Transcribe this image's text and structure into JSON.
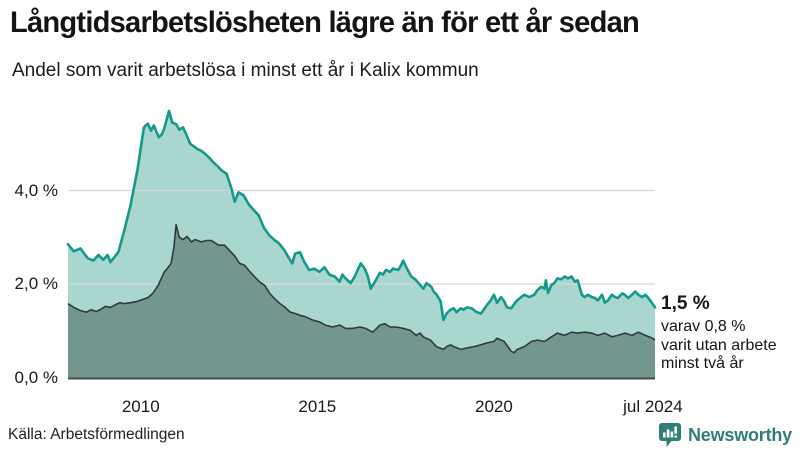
{
  "header": {
    "title": "Långtidsarbetslösheten lägre än för ett år sedan",
    "subtitle": "Andel som varit arbetslösa i minst ett år i Kalix kommun"
  },
  "annotation": {
    "headline": "1,5 %",
    "lines": [
      "varav 0,8 %",
      "varit utan arbete",
      "minst två år"
    ]
  },
  "footer": {
    "source": "Källa: Arbetsförmedlingen",
    "brand": "Newsworthy"
  },
  "colors": {
    "title_text": "#141414",
    "body_text": "#1b1b1b",
    "area_one_year_fill": "#a9d6ce",
    "area_one_year_line": "#149a8b",
    "area_two_year_fill": "#73978e",
    "area_two_year_line": "#2e3b38",
    "gridline": "#d3d8da",
    "baseline": "#4b4b4b",
    "brand_teal": "#2f7f78"
  },
  "chart_data": {
    "type": "area",
    "title": "Långtidsarbetslösheten lägre än för ett år sedan",
    "subtitle": "Andel som varit arbetslösa i minst ett år i Kalix kommun",
    "unit": "%",
    "grid": "horizontal",
    "legend_position": "none",
    "x_axis": {
      "range": [
        2007.94,
        2024.56
      ],
      "ticks": [
        {
          "year": 2010,
          "label": "2010"
        },
        {
          "year": 2015,
          "label": "2015"
        },
        {
          "year": 2020,
          "label": "2020"
        },
        {
          "year": 2024.5,
          "label": "jul 2024"
        }
      ]
    },
    "y_axis": {
      "range": [
        0,
        6
      ],
      "ticks": [
        {
          "value": 0,
          "label": "0,0 %"
        },
        {
          "value": 2,
          "label": "2,0 %"
        },
        {
          "value": 4,
          "label": "4,0 %"
        }
      ]
    },
    "last_point": {
      "label": "jul 2024",
      "one_year_pct": "1,5 %",
      "two_year_pct": "0,8 %"
    },
    "series": [
      {
        "name": "Andel som varit arbetslösa i minst ett år",
        "fill": "#a9d6ce",
        "line": "#149a8b",
        "points": [
          [
            2007.94,
            2.85
          ],
          [
            2008.1,
            2.7
          ],
          [
            2008.29,
            2.76
          ],
          [
            2008.5,
            2.55
          ],
          [
            2008.66,
            2.5
          ],
          [
            2008.8,
            2.62
          ],
          [
            2008.94,
            2.52
          ],
          [
            2009.06,
            2.62
          ],
          [
            2009.14,
            2.47
          ],
          [
            2009.26,
            2.58
          ],
          [
            2009.37,
            2.69
          ],
          [
            2009.51,
            3.08
          ],
          [
            2009.71,
            3.68
          ],
          [
            2009.91,
            4.46
          ],
          [
            2010.09,
            5.35
          ],
          [
            2010.2,
            5.43
          ],
          [
            2010.29,
            5.28
          ],
          [
            2010.37,
            5.39
          ],
          [
            2010.51,
            5.14
          ],
          [
            2010.6,
            5.2
          ],
          [
            2010.66,
            5.32
          ],
          [
            2010.71,
            5.45
          ],
          [
            2010.8,
            5.7
          ],
          [
            2010.89,
            5.45
          ],
          [
            2011.0,
            5.42
          ],
          [
            2011.09,
            5.3
          ],
          [
            2011.2,
            5.35
          ],
          [
            2011.29,
            5.2
          ],
          [
            2011.4,
            5.0
          ],
          [
            2011.49,
            4.95
          ],
          [
            2011.6,
            4.89
          ],
          [
            2011.71,
            4.85
          ],
          [
            2011.83,
            4.78
          ],
          [
            2011.94,
            4.7
          ],
          [
            2012.06,
            4.6
          ],
          [
            2012.2,
            4.5
          ],
          [
            2012.29,
            4.43
          ],
          [
            2012.43,
            4.36
          ],
          [
            2012.57,
            4.04
          ],
          [
            2012.66,
            3.76
          ],
          [
            2012.77,
            3.96
          ],
          [
            2012.91,
            3.9
          ],
          [
            2013.06,
            3.7
          ],
          [
            2013.2,
            3.58
          ],
          [
            2013.34,
            3.47
          ],
          [
            2013.49,
            3.2
          ],
          [
            2013.63,
            3.05
          ],
          [
            2013.77,
            2.95
          ],
          [
            2013.91,
            2.87
          ],
          [
            2014.06,
            2.73
          ],
          [
            2014.2,
            2.55
          ],
          [
            2014.29,
            2.44
          ],
          [
            2014.37,
            2.65
          ],
          [
            2014.51,
            2.68
          ],
          [
            2014.63,
            2.47
          ],
          [
            2014.77,
            2.3
          ],
          [
            2014.91,
            2.33
          ],
          [
            2015.06,
            2.26
          ],
          [
            2015.2,
            2.36
          ],
          [
            2015.34,
            2.2
          ],
          [
            2015.49,
            2.16
          ],
          [
            2015.63,
            2.05
          ],
          [
            2015.71,
            2.2
          ],
          [
            2015.8,
            2.12
          ],
          [
            2015.94,
            2.02
          ],
          [
            2016.06,
            2.16
          ],
          [
            2016.14,
            2.3
          ],
          [
            2016.23,
            2.44
          ],
          [
            2016.34,
            2.33
          ],
          [
            2016.43,
            2.16
          ],
          [
            2016.51,
            1.9
          ],
          [
            2016.63,
            2.05
          ],
          [
            2016.77,
            2.24
          ],
          [
            2016.86,
            2.2
          ],
          [
            2016.94,
            2.3
          ],
          [
            2017.06,
            2.26
          ],
          [
            2017.14,
            2.33
          ],
          [
            2017.29,
            2.3
          ],
          [
            2017.37,
            2.4
          ],
          [
            2017.43,
            2.5
          ],
          [
            2017.51,
            2.37
          ],
          [
            2017.66,
            2.16
          ],
          [
            2017.77,
            2.1
          ],
          [
            2017.91,
            1.98
          ],
          [
            2018.0,
            1.9
          ],
          [
            2018.09,
            2.02
          ],
          [
            2018.23,
            1.94
          ],
          [
            2018.29,
            1.84
          ],
          [
            2018.37,
            1.78
          ],
          [
            2018.49,
            1.63
          ],
          [
            2018.57,
            1.23
          ],
          [
            2018.66,
            1.37
          ],
          [
            2018.77,
            1.45
          ],
          [
            2018.86,
            1.48
          ],
          [
            2018.94,
            1.4
          ],
          [
            2019.06,
            1.48
          ],
          [
            2019.14,
            1.45
          ],
          [
            2019.23,
            1.5
          ],
          [
            2019.37,
            1.48
          ],
          [
            2019.51,
            1.4
          ],
          [
            2019.63,
            1.37
          ],
          [
            2019.71,
            1.45
          ],
          [
            2019.8,
            1.55
          ],
          [
            2019.91,
            1.65
          ],
          [
            2020.0,
            1.77
          ],
          [
            2020.09,
            1.6
          ],
          [
            2020.2,
            1.72
          ],
          [
            2020.29,
            1.63
          ],
          [
            2020.37,
            1.5
          ],
          [
            2020.49,
            1.48
          ],
          [
            2020.63,
            1.63
          ],
          [
            2020.77,
            1.72
          ],
          [
            2020.86,
            1.77
          ],
          [
            2021.0,
            1.72
          ],
          [
            2021.14,
            1.77
          ],
          [
            2021.23,
            1.87
          ],
          [
            2021.34,
            1.94
          ],
          [
            2021.43,
            1.9
          ],
          [
            2021.47,
            2.08
          ],
          [
            2021.53,
            1.81
          ],
          [
            2021.63,
            1.98
          ],
          [
            2021.71,
            2.02
          ],
          [
            2021.8,
            2.12
          ],
          [
            2021.91,
            2.1
          ],
          [
            2022.0,
            2.16
          ],
          [
            2022.09,
            2.12
          ],
          [
            2022.2,
            2.16
          ],
          [
            2022.29,
            2.05
          ],
          [
            2022.37,
            2.08
          ],
          [
            2022.49,
            1.77
          ],
          [
            2022.57,
            1.72
          ],
          [
            2022.66,
            1.77
          ],
          [
            2022.77,
            1.72
          ],
          [
            2022.86,
            1.7
          ],
          [
            2022.94,
            1.65
          ],
          [
            2023.06,
            1.77
          ],
          [
            2023.14,
            1.6
          ],
          [
            2023.23,
            1.65
          ],
          [
            2023.34,
            1.77
          ],
          [
            2023.43,
            1.72
          ],
          [
            2023.51,
            1.7
          ],
          [
            2023.63,
            1.8
          ],
          [
            2023.71,
            1.77
          ],
          [
            2023.8,
            1.7
          ],
          [
            2023.91,
            1.77
          ],
          [
            2024.0,
            1.84
          ],
          [
            2024.09,
            1.77
          ],
          [
            2024.2,
            1.72
          ],
          [
            2024.29,
            1.77
          ],
          [
            2024.37,
            1.7
          ],
          [
            2024.45,
            1.62
          ],
          [
            2024.56,
            1.5
          ]
        ]
      },
      {
        "name": "varav utan arbete minst två år",
        "fill": "#73978e",
        "line": "#2e3b38",
        "points": [
          [
            2007.94,
            1.58
          ],
          [
            2008.1,
            1.5
          ],
          [
            2008.29,
            1.43
          ],
          [
            2008.46,
            1.4
          ],
          [
            2008.6,
            1.45
          ],
          [
            2008.74,
            1.41
          ],
          [
            2008.89,
            1.47
          ],
          [
            2009.0,
            1.52
          ],
          [
            2009.14,
            1.5
          ],
          [
            2009.29,
            1.56
          ],
          [
            2009.4,
            1.6
          ],
          [
            2009.54,
            1.58
          ],
          [
            2009.71,
            1.6
          ],
          [
            2009.91,
            1.63
          ],
          [
            2010.09,
            1.68
          ],
          [
            2010.2,
            1.71
          ],
          [
            2010.34,
            1.8
          ],
          [
            2010.49,
            1.97
          ],
          [
            2010.66,
            2.25
          ],
          [
            2010.77,
            2.35
          ],
          [
            2010.86,
            2.44
          ],
          [
            2010.94,
            2.8
          ],
          [
            2011.0,
            3.27
          ],
          [
            2011.09,
            3.0
          ],
          [
            2011.2,
            2.95
          ],
          [
            2011.31,
            3.02
          ],
          [
            2011.43,
            2.9
          ],
          [
            2011.54,
            2.95
          ],
          [
            2011.71,
            2.9
          ],
          [
            2011.86,
            2.93
          ],
          [
            2012.0,
            2.93
          ],
          [
            2012.2,
            2.83
          ],
          [
            2012.37,
            2.83
          ],
          [
            2012.51,
            2.72
          ],
          [
            2012.66,
            2.6
          ],
          [
            2012.8,
            2.44
          ],
          [
            2012.94,
            2.4
          ],
          [
            2013.09,
            2.26
          ],
          [
            2013.23,
            2.15
          ],
          [
            2013.37,
            2.04
          ],
          [
            2013.51,
            1.97
          ],
          [
            2013.66,
            1.79
          ],
          [
            2013.8,
            1.68
          ],
          [
            2013.94,
            1.58
          ],
          [
            2014.09,
            1.5
          ],
          [
            2014.23,
            1.4
          ],
          [
            2014.37,
            1.37
          ],
          [
            2014.51,
            1.33
          ],
          [
            2014.66,
            1.3
          ],
          [
            2014.86,
            1.23
          ],
          [
            2015.06,
            1.19
          ],
          [
            2015.23,
            1.12
          ],
          [
            2015.43,
            1.08
          ],
          [
            2015.63,
            1.12
          ],
          [
            2015.8,
            1.05
          ],
          [
            2016.0,
            1.05
          ],
          [
            2016.2,
            1.08
          ],
          [
            2016.37,
            1.05
          ],
          [
            2016.57,
            0.97
          ],
          [
            2016.77,
            1.12
          ],
          [
            2016.91,
            1.15
          ],
          [
            2017.06,
            1.08
          ],
          [
            2017.23,
            1.08
          ],
          [
            2017.43,
            1.05
          ],
          [
            2017.63,
            1.01
          ],
          [
            2017.8,
            0.9
          ],
          [
            2017.91,
            0.95
          ],
          [
            2018.0,
            0.87
          ],
          [
            2018.2,
            0.8
          ],
          [
            2018.37,
            0.66
          ],
          [
            2018.57,
            0.6
          ],
          [
            2018.66,
            0.66
          ],
          [
            2018.77,
            0.7
          ],
          [
            2018.86,
            0.66
          ],
          [
            2019.06,
            0.6
          ],
          [
            2019.23,
            0.63
          ],
          [
            2019.43,
            0.66
          ],
          [
            2019.63,
            0.7
          ],
          [
            2019.8,
            0.74
          ],
          [
            2020.0,
            0.77
          ],
          [
            2020.09,
            0.84
          ],
          [
            2020.29,
            0.77
          ],
          [
            2020.49,
            0.56
          ],
          [
            2020.57,
            0.53
          ],
          [
            2020.66,
            0.6
          ],
          [
            2020.86,
            0.66
          ],
          [
            2021.06,
            0.77
          ],
          [
            2021.23,
            0.8
          ],
          [
            2021.43,
            0.77
          ],
          [
            2021.63,
            0.87
          ],
          [
            2021.8,
            0.95
          ],
          [
            2022.0,
            0.9
          ],
          [
            2022.2,
            0.97
          ],
          [
            2022.37,
            0.95
          ],
          [
            2022.57,
            0.97
          ],
          [
            2022.77,
            0.95
          ],
          [
            2022.94,
            0.9
          ],
          [
            2023.14,
            0.95
          ],
          [
            2023.34,
            0.87
          ],
          [
            2023.51,
            0.9
          ],
          [
            2023.71,
            0.95
          ],
          [
            2023.91,
            0.9
          ],
          [
            2024.09,
            0.97
          ],
          [
            2024.29,
            0.9
          ],
          [
            2024.49,
            0.84
          ],
          [
            2024.56,
            0.8
          ]
        ]
      }
    ]
  }
}
